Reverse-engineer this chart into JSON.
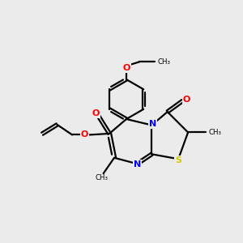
{
  "background_color": "#ebebeb",
  "bond_color": "#000000",
  "N_color": "#0000ff",
  "O_color": "#ff0000",
  "S_color": "#cccc00",
  "line_width": 1.6,
  "fig_size": [
    3.0,
    3.0
  ],
  "dpi": 100,
  "xlim": [
    0,
    10
  ],
  "ylim": [
    0,
    10
  ]
}
